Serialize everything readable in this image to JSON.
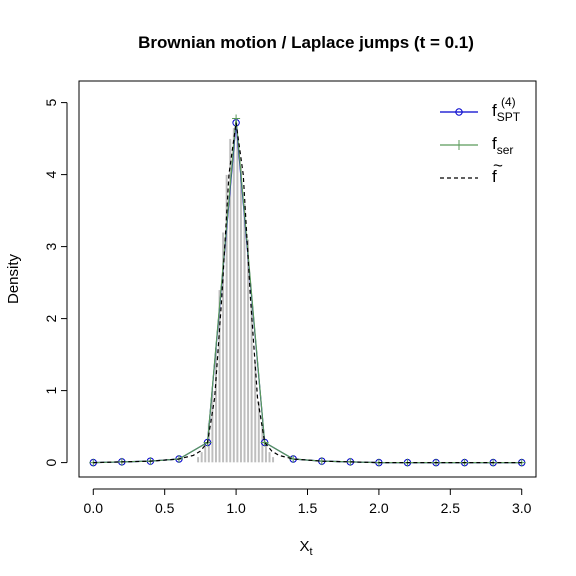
{
  "chart_data": {
    "type": "line",
    "title": "Brownian motion / Laplace jumps (t = 0.1)",
    "xlabel": "X",
    "xlabel_sub": "t",
    "ylabel": "Density",
    "xlim": [
      -0.1,
      3.1
    ],
    "ylim": [
      -0.2,
      5.3
    ],
    "xticks": [
      "0.0",
      "0.5",
      "1.0",
      "1.5",
      "2.0",
      "2.5",
      "3.0"
    ],
    "yticks": [
      "0",
      "1",
      "2",
      "3",
      "4",
      "5"
    ],
    "histogram": {
      "color": "#bebebe",
      "bin_width": 0.025,
      "bins": [
        {
          "x0": 0.725,
          "y": 0.08
        },
        {
          "x0": 0.75,
          "y": 0.15
        },
        {
          "x0": 0.775,
          "y": 0.28
        },
        {
          "x0": 0.8,
          "y": 0.55
        },
        {
          "x0": 0.825,
          "y": 1.0
        },
        {
          "x0": 0.85,
          "y": 1.6
        },
        {
          "x0": 0.875,
          "y": 2.4
        },
        {
          "x0": 0.9,
          "y": 3.2
        },
        {
          "x0": 0.925,
          "y": 4.0
        },
        {
          "x0": 0.95,
          "y": 4.5
        },
        {
          "x0": 0.975,
          "y": 4.65
        },
        {
          "x0": 1.0,
          "y": 4.55
        },
        {
          "x0": 1.025,
          "y": 4.1
        },
        {
          "x0": 1.05,
          "y": 3.6
        },
        {
          "x0": 1.075,
          "y": 3.1
        },
        {
          "x0": 1.1,
          "y": 2.2
        },
        {
          "x0": 1.125,
          "y": 1.4
        },
        {
          "x0": 1.15,
          "y": 0.85
        },
        {
          "x0": 1.175,
          "y": 0.5
        },
        {
          "x0": 1.2,
          "y": 0.28
        },
        {
          "x0": 1.225,
          "y": 0.15
        },
        {
          "x0": 1.25,
          "y": 0.08
        }
      ]
    },
    "series": [
      {
        "name": "f",
        "name_sub": "SPT",
        "name_sup": "(4)",
        "color": "#0000cd",
        "marker": "circle",
        "line": "solid",
        "x": [
          0.0,
          0.2,
          0.4,
          0.6,
          0.8,
          1.0,
          1.2,
          1.4,
          1.6,
          1.8,
          2.0,
          2.2,
          2.4,
          2.6,
          2.8,
          3.0
        ],
        "y": [
          0.0,
          0.01,
          0.02,
          0.05,
          0.28,
          4.72,
          0.28,
          0.05,
          0.02,
          0.01,
          0.0,
          0.0,
          0.0,
          0.0,
          0.0,
          0.0
        ]
      },
      {
        "name": "f",
        "name_sub": "ser",
        "color": "#5a9a5a",
        "marker": "plus",
        "line": "solid",
        "x": [
          0.0,
          0.2,
          0.4,
          0.6,
          0.8,
          1.0,
          1.2,
          1.4,
          1.6,
          1.8,
          2.0,
          2.2,
          2.4,
          2.6,
          2.8,
          3.0
        ],
        "y": [
          0.0,
          0.01,
          0.02,
          0.05,
          0.28,
          4.78,
          0.28,
          0.05,
          0.02,
          0.01,
          0.0,
          0.0,
          0.0,
          0.0,
          0.0,
          0.0
        ]
      },
      {
        "name": "f",
        "name_accent": "~",
        "color": "#000000",
        "marker": "none",
        "line": "dashed",
        "x": [
          0.0,
          0.2,
          0.4,
          0.6,
          0.7,
          0.75,
          0.8,
          0.85,
          0.9,
          0.95,
          1.0,
          1.05,
          1.1,
          1.15,
          1.2,
          1.25,
          1.3,
          1.4,
          1.6,
          1.8,
          2.0,
          3.0
        ],
        "y": [
          0.0,
          0.01,
          0.02,
          0.05,
          0.1,
          0.16,
          0.28,
          0.9,
          2.3,
          4.0,
          4.72,
          4.0,
          2.3,
          0.9,
          0.28,
          0.16,
          0.1,
          0.05,
          0.02,
          0.01,
          0.0,
          0.0
        ]
      }
    ],
    "legend": "top-right"
  }
}
